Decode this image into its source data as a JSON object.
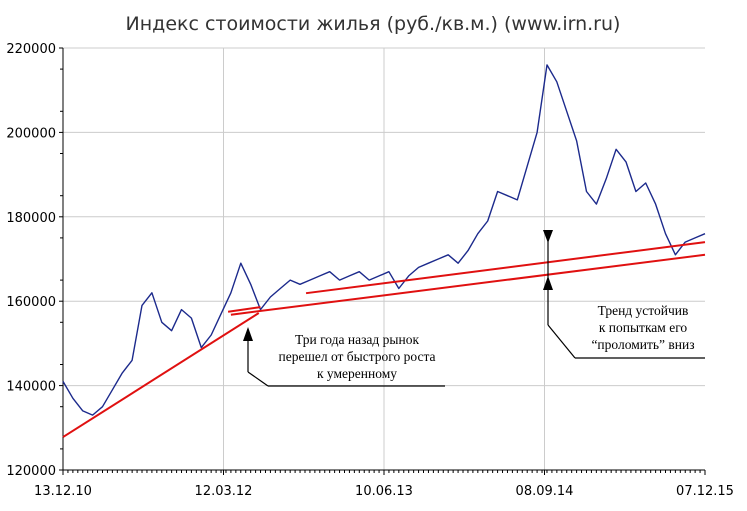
{
  "chart_data": {
    "type": "line",
    "title": "Индекс стоимости жилья (руб./кв.м.) (www.irn.ru)",
    "xlabel": "",
    "ylabel": "",
    "ylim": [
      120000,
      220000
    ],
    "yticks": [
      "120000",
      "140000",
      "160000",
      "180000",
      "200000",
      "220000"
    ],
    "xticks": [
      "13.12.10",
      "12.03.12",
      "10.06.13",
      "08.09.14",
      "07.12.15"
    ],
    "x_range": [
      "2010-12-13",
      "2015-12-07"
    ],
    "grid": true,
    "colors": {
      "series": "#1c2a8c",
      "trend": "#e01010",
      "grid": "#cccccc",
      "axis": "#000000",
      "annotation": "#000000"
    },
    "series": [
      {
        "x": [
          "2010-12-13",
          "2011-01-10",
          "2011-02-07",
          "2011-03-07",
          "2011-04-04",
          "2011-05-02",
          "2011-05-30",
          "2011-06-27",
          "2011-07-25",
          "2011-08-22",
          "2011-09-19",
          "2011-10-17",
          "2011-11-14",
          "2011-12-12",
          "2012-01-09",
          "2012-02-06",
          "2012-03-05",
          "2012-04-02",
          "2012-04-30",
          "2012-05-28",
          "2012-06-25",
          "2012-07-23",
          "2012-08-20",
          "2012-09-17",
          "2012-10-15",
          "2012-11-12",
          "2012-12-10",
          "2013-01-07",
          "2013-02-04",
          "2013-03-04",
          "2013-04-01",
          "2013-04-29",
          "2013-05-27",
          "2013-06-24",
          "2013-07-22",
          "2013-08-19",
          "2013-09-16",
          "2013-10-14",
          "2013-11-11",
          "2013-12-09",
          "2014-01-06",
          "2014-02-03",
          "2014-03-03",
          "2014-03-31",
          "2014-04-28",
          "2014-05-26",
          "2014-06-23",
          "2014-07-21",
          "2014-08-18",
          "2014-09-15",
          "2014-10-13",
          "2014-11-10",
          "2014-12-08",
          "2015-01-05",
          "2015-02-02",
          "2015-03-02",
          "2015-03-30",
          "2015-04-27",
          "2015-05-25",
          "2015-06-22",
          "2015-07-20",
          "2015-08-17",
          "2015-09-14",
          "2015-10-12",
          "2015-11-09",
          "2015-12-07"
        ],
        "values": [
          141000,
          137000,
          134000,
          133000,
          135000,
          139000,
          143000,
          146000,
          159000,
          162000,
          155000,
          153000,
          158000,
          156000,
          149000,
          152000,
          157000,
          162000,
          169000,
          164000,
          158000,
          161000,
          163000,
          165000,
          164000,
          165000,
          166000,
          167000,
          165000,
          166000,
          167000,
          165000,
          166000,
          167000,
          163000,
          166000,
          168000,
          169000,
          170000,
          171000,
          169000,
          172000,
          176000,
          179000,
          186000,
          185000,
          184000,
          192000,
          200000,
          216000,
          212000,
          205000,
          198000,
          186000,
          183000,
          189000,
          196000,
          193000,
          186000,
          188000,
          183000,
          176000,
          171000,
          174000,
          175000,
          176000
        ]
      }
    ],
    "trend_lines": [
      {
        "x": [
          "2010-12-13",
          "2012-06-20"
        ],
        "values": [
          127800,
          157200
        ]
      },
      {
        "x": [
          "2012-04-02",
          "2015-12-07"
        ],
        "values": [
          156800,
          171000
        ]
      },
      {
        "x": [
          "2012-03-25",
          "2012-06-25"
        ],
        "values": [
          157500,
          158600
        ]
      },
      {
        "x": [
          "2012-11-01",
          "2015-12-07"
        ],
        "values": [
          161900,
          174000
        ]
      }
    ],
    "annotations": [
      {
        "lines": [
          "Три года назад рынок",
          "перешел от быстрого роста",
          "к умеренному"
        ]
      },
      {
        "lines": [
          "Тренд устойчив",
          "к попыткам его",
          "“проломить” вниз"
        ]
      }
    ]
  }
}
